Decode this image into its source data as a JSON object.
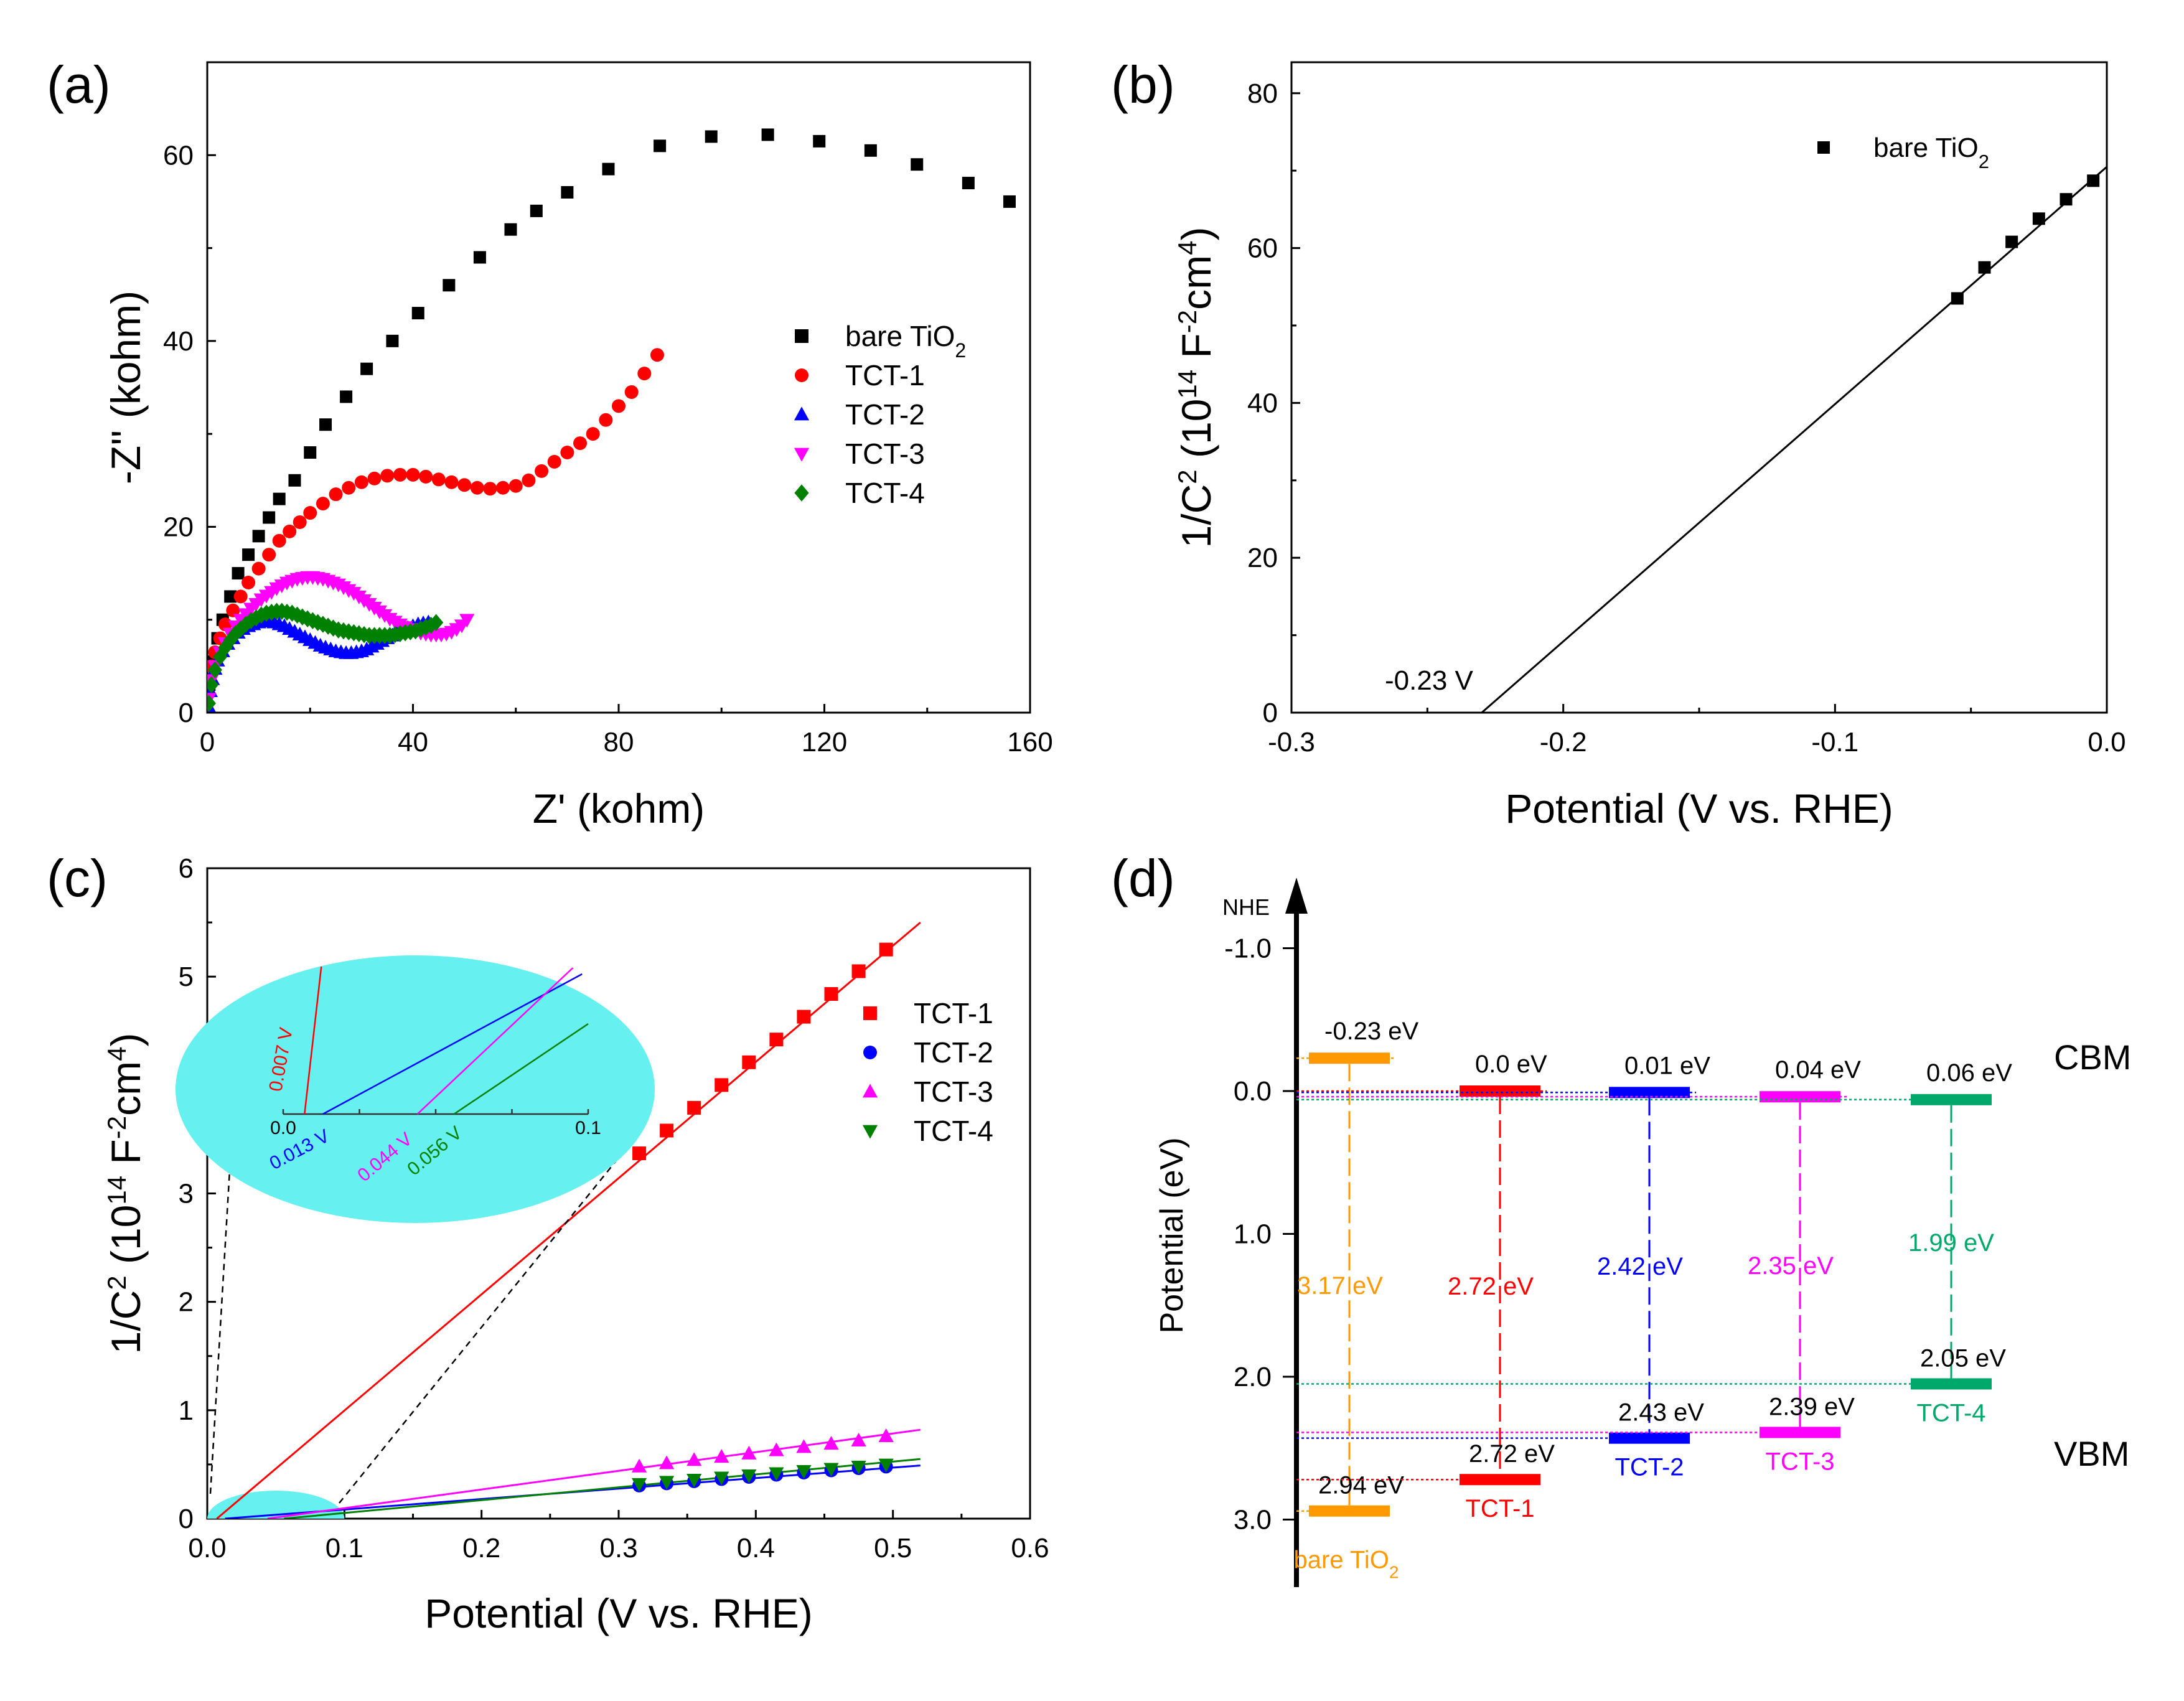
{
  "chart_data": [
    {
      "panel": "(a)",
      "type": "scatter",
      "xlabel": "Z' (kohm)",
      "ylabel": "-Z'' (kohm)",
      "xlim": [
        0,
        160
      ],
      "ylim": [
        0,
        70
      ],
      "xticks": [
        0,
        40,
        80,
        120,
        160
      ],
      "yticks": [
        0,
        20,
        40,
        60
      ],
      "legend_position": "middle-right",
      "series": [
        {
          "name": "bare TiO",
          "sub": "2",
          "color": "#000000",
          "marker": "square",
          "x": [
            0.4,
            1,
            2,
            3,
            4.5,
            6,
            8,
            10,
            12,
            14,
            17,
            20,
            23,
            27,
            31,
            36,
            41,
            47,
            53,
            59,
            64,
            70,
            78,
            88,
            98,
            109,
            119,
            129,
            138,
            148,
            156
          ],
          "y": [
            3,
            5.5,
            8,
            10,
            12.5,
            15,
            17,
            19,
            21,
            23,
            25,
            28,
            31,
            34,
            37,
            40,
            43,
            46,
            49,
            52,
            54,
            56,
            58.5,
            61,
            62,
            62.2,
            61.5,
            60.5,
            59,
            57,
            55
          ]
        },
        {
          "name": "TCT-1",
          "color": "#ff0000",
          "marker": "circle",
          "x": [
            0.3,
            0.8,
            1.5,
            2.5,
            3.5,
            5,
            6.5,
            8,
            10,
            12,
            14,
            16,
            18,
            20,
            22.5,
            25,
            27.5,
            30,
            32.5,
            35,
            37.5,
            40,
            42.5,
            45,
            47.5,
            50,
            52.5,
            55,
            57.5,
            60,
            62.5,
            65,
            67.5,
            70,
            72.5,
            75,
            77.5,
            80,
            82.5,
            85,
            87.5
          ],
          "y": [
            3,
            5,
            6.5,
            8,
            9.5,
            11,
            12.5,
            14,
            15.5,
            17,
            18.5,
            19.5,
            20.5,
            21.5,
            22.5,
            23.5,
            24.2,
            24.8,
            25.2,
            25.5,
            25.6,
            25.6,
            25.4,
            25.1,
            24.8,
            24.5,
            24.2,
            24.1,
            24.2,
            24.4,
            25,
            26,
            27,
            28,
            29,
            30,
            31.5,
            33,
            34.5,
            36.5,
            38.5
          ]
        },
        {
          "name": "TCT-2",
          "color": "#0000ff",
          "marker": "triangle-up",
          "x": [
            0.2,
            0.6,
            1,
            1.5,
            2,
            3,
            4,
            5,
            6,
            7,
            8,
            9,
            10,
            11,
            12,
            13,
            14,
            15,
            16,
            17,
            18,
            19,
            20,
            21,
            22,
            23,
            24,
            25,
            26,
            27,
            28,
            29,
            30,
            31,
            32,
            33,
            34,
            35,
            36,
            37,
            38,
            39,
            40,
            41,
            42,
            43
          ],
          "y": [
            0.7,
            2.3,
            3.6,
            4.7,
            5.6,
            6.6,
            7.4,
            8,
            8.6,
            9,
            9.3,
            9.5,
            9.7,
            9.8,
            9.8,
            9.7,
            9.5,
            9.3,
            9,
            8.7,
            8.4,
            8.1,
            7.8,
            7.5,
            7.2,
            7,
            6.8,
            6.6,
            6.5,
            6.4,
            6.4,
            6.5,
            6.6,
            6.8,
            7.1,
            7.4,
            7.7,
            8,
            8.3,
            8.6,
            8.9,
            9.1,
            9.3,
            9.5,
            9.6,
            9.7
          ]
        },
        {
          "name": "TCT-3",
          "color": "#ff00ff",
          "marker": "triangle-down",
          "x": [
            0.3,
            0.8,
            1.5,
            2.5,
            3.5,
            4.5,
            5.5,
            6.5,
            7.5,
            8.5,
            9.5,
            10.5,
            11.5,
            12.5,
            13.5,
            14.5,
            15.5,
            16.5,
            17.5,
            18.5,
            19.5,
            20.5,
            21.5,
            22.5,
            23.5,
            24.5,
            25.5,
            26.5,
            27.5,
            28.5,
            29.5,
            30.5,
            31.5,
            32.5,
            33.5,
            34.5,
            35.5,
            36.5,
            37.5,
            38.5,
            39.5,
            40.5,
            41.5,
            42.5,
            43.5,
            44.5,
            45.5,
            46.5,
            47.5,
            48.5,
            49.5,
            50.5
          ],
          "y": [
            1.5,
            3.5,
            5,
            6.5,
            7.5,
            8.5,
            9.3,
            10,
            10.6,
            11.2,
            11.7,
            12.2,
            12.6,
            13,
            13.4,
            13.7,
            14,
            14.2,
            14.4,
            14.5,
            14.6,
            14.6,
            14.5,
            14.4,
            14.2,
            14,
            13.8,
            13.5,
            13.2,
            12.9,
            12.5,
            12.1,
            11.7,
            11.3,
            10.9,
            10.5,
            10.1,
            9.8,
            9.5,
            9.2,
            9,
            8.8,
            8.6,
            8.5,
            8.4,
            8.4,
            8.4,
            8.5,
            8.7,
            9,
            9.4,
            10
          ]
        },
        {
          "name": "TCT-4",
          "color": "#008000",
          "marker": "diamond",
          "x": [
            0.3,
            0.8,
            1.5,
            2.5,
            3.5,
            4.5,
            5.5,
            6.5,
            7.5,
            8.5,
            9.5,
            10.5,
            11.5,
            12.5,
            13.5,
            14.5,
            15.5,
            16.5,
            17.5,
            18.5,
            19.5,
            20.5,
            21.5,
            22.5,
            23.5,
            24.5,
            25.5,
            26.5,
            27.5,
            28.5,
            29.5,
            30.5,
            31.5,
            32.5,
            33.5,
            34.5,
            35.5,
            36.5,
            37.5,
            38.5,
            39.5,
            40.5,
            41.5,
            42.5,
            43.5,
            44.5
          ],
          "y": [
            1,
            3,
            4.6,
            6,
            7,
            7.8,
            8.5,
            9,
            9.5,
            9.9,
            10.2,
            10.5,
            10.7,
            10.8,
            10.9,
            10.9,
            10.8,
            10.7,
            10.5,
            10.3,
            10.1,
            9.9,
            9.7,
            9.5,
            9.3,
            9.1,
            8.9,
            8.8,
            8.7,
            8.6,
            8.5,
            8.4,
            8.3,
            8.3,
            8.3,
            8.3,
            8.3,
            8.4,
            8.5,
            8.6,
            8.7,
            8.8,
            9,
            9.2,
            9.4,
            9.7
          ]
        }
      ]
    },
    {
      "panel": "(b)",
      "type": "scatter",
      "xlabel": "Potential (V vs. RHE)",
      "ylabel": "1/C² (10¹⁴ F⁻²cm⁴)",
      "xlim": [
        -0.3,
        0.0
      ],
      "ylim": [
        0,
        84
      ],
      "xticks": [
        -0.3,
        -0.2,
        -0.1,
        0.0
      ],
      "yticks": [
        0,
        20,
        40,
        60,
        80
      ],
      "legend_position": "top-right",
      "series": [
        {
          "name": "bare TiO",
          "sub": "2",
          "color": "#000000",
          "marker": "square",
          "x": [
            -0.055,
            -0.045,
            -0.035,
            -0.025,
            -0.015,
            -0.005
          ],
          "y": [
            53.5,
            57.5,
            60.8,
            63.8,
            66.3,
            68.7
          ]
        }
      ],
      "fit_line": {
        "x": [
          -0.23,
          0.0
        ],
        "y": [
          0,
          70.5
        ]
      },
      "annotation": "-0.23 V"
    },
    {
      "panel": "(c)",
      "type": "scatter",
      "xlabel": "Potential (V vs. RHE)",
      "ylabel": "1/C² (10¹⁴ F⁻²cm⁴)",
      "xlim": [
        0,
        0.6
      ],
      "ylim": [
        0,
        6
      ],
      "xticks": [
        0.0,
        0.1,
        0.2,
        0.3,
        0.4,
        0.5,
        0.6
      ],
      "yticks": [
        0,
        1,
        2,
        3,
        4,
        5,
        6
      ],
      "legend_position": "right",
      "series": [
        {
          "name": "TCT-1",
          "color": "#ff0000",
          "marker": "square",
          "x": [
            0.315,
            0.335,
            0.355,
            0.375,
            0.395,
            0.415,
            0.435,
            0.455,
            0.475,
            0.495
          ],
          "y": [
            3.37,
            3.58,
            3.79,
            4.0,
            4.21,
            4.42,
            4.63,
            4.84,
            5.05,
            5.25
          ],
          "fit": [
            0.007,
            0.52,
            5.5
          ]
        },
        {
          "name": "TCT-2",
          "color": "#0000ff",
          "marker": "circle",
          "x": [
            0.315,
            0.335,
            0.355,
            0.375,
            0.395,
            0.415,
            0.435,
            0.455,
            0.475,
            0.495
          ],
          "y": [
            0.305,
            0.325,
            0.345,
            0.365,
            0.385,
            0.405,
            0.425,
            0.445,
            0.465,
            0.48
          ],
          "fit": [
            0.013,
            0.52,
            0.49
          ]
        },
        {
          "name": "TCT-3",
          "color": "#ff00ff",
          "marker": "triangle-up",
          "x": [
            0.315,
            0.335,
            0.355,
            0.375,
            0.395,
            0.415,
            0.435,
            0.455,
            0.475,
            0.495
          ],
          "y": [
            0.48,
            0.51,
            0.54,
            0.57,
            0.6,
            0.63,
            0.66,
            0.69,
            0.72,
            0.76
          ],
          "fit": [
            0.044,
            0.52,
            0.82
          ]
        },
        {
          "name": "TCT-4",
          "color": "#008000",
          "marker": "triangle-down",
          "x": [
            0.315,
            0.335,
            0.355,
            0.375,
            0.395,
            0.415,
            0.435,
            0.455,
            0.475,
            0.495
          ],
          "y": [
            0.32,
            0.34,
            0.36,
            0.38,
            0.4,
            0.42,
            0.44,
            0.46,
            0.48,
            0.5
          ],
          "fit": [
            0.056,
            0.52,
            0.55
          ]
        }
      ],
      "inset": {
        "xticks": [
          "0.0",
          "0.1"
        ],
        "labels": [
          {
            "text": "0.007 V",
            "color": "#ff0000"
          },
          {
            "text": "0.013 V",
            "color": "#0000ff"
          },
          {
            "text": "0.044 V",
            "color": "#ff00ff"
          },
          {
            "text": "0.056 V",
            "color": "#008000"
          }
        ]
      }
    },
    {
      "panel": "(d)",
      "type": "band-diagram",
      "axis_top_label": "NHE",
      "ylabel": "Potential (eV)",
      "ylim": [
        -1.5,
        3.5
      ],
      "yticks": [
        "-1.0",
        "0.0",
        "1.0",
        "2.0",
        "3.0"
      ],
      "cbm_label": "CBM",
      "vbm_label": "VBM",
      "materials": [
        {
          "name": "bare TiO",
          "sub": "2",
          "color": "#ff9900",
          "cb": -0.23,
          "vb": 2.94,
          "cb_label": "-0.23 eV",
          "vb_label": "2.94 eV",
          "gap_label": "3.17 eV"
        },
        {
          "name": "TCT-1",
          "sub": "",
          "color": "#ff0000",
          "cb": 0.0,
          "vb": 2.72,
          "cb_label": "0.0 eV",
          "vb_label": "2.72 eV",
          "gap_label": "2.72 eV"
        },
        {
          "name": "TCT-2",
          "sub": "",
          "color": "#0000ff",
          "cb": 0.01,
          "vb": 2.43,
          "cb_label": "0.01 eV",
          "vb_label": "2.43 eV",
          "gap_label": "2.42 eV"
        },
        {
          "name": "TCT-3",
          "sub": "",
          "color": "#ff00ff",
          "cb": 0.04,
          "vb": 2.39,
          "cb_label": "0.04 eV",
          "vb_label": "2.39 eV",
          "gap_label": "2.35 eV"
        },
        {
          "name": "TCT-4",
          "sub": "",
          "color": "#00a86b",
          "cb": 0.06,
          "vb": 2.05,
          "cb_label": "0.06 eV",
          "vb_label": "2.05 eV",
          "gap_label": "1.99 eV"
        }
      ]
    }
  ]
}
